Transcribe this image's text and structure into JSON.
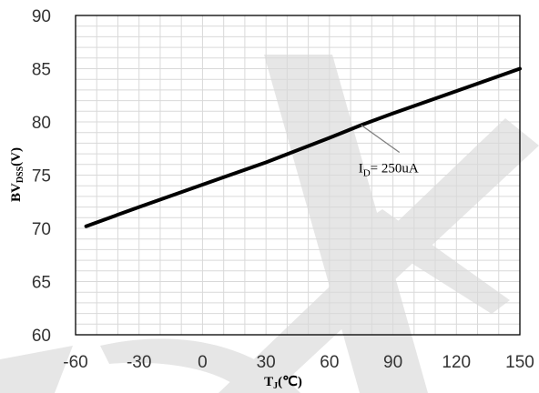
{
  "chart_data": {
    "type": "line",
    "xlim": [
      -60,
      150
    ],
    "ylim": [
      60,
      90
    ],
    "x_ticks": [
      -60,
      -30,
      0,
      30,
      60,
      90,
      120,
      150
    ],
    "y_ticks": [
      60,
      65,
      70,
      75,
      80,
      85,
      90
    ],
    "x_minor_step": 10,
    "y_minor_step": 1,
    "grid": true,
    "xlabel": {
      "main": "T",
      "sub": "J",
      "rest": "(℃)"
    },
    "ylabel": {
      "main": "BV",
      "sub": "DSS",
      "rest": "(V)"
    },
    "series": [
      {
        "color": "#000000",
        "x": [
          -55,
          -30,
          0,
          30,
          60,
          75,
          90,
          120,
          150
        ],
        "y": [
          70.2,
          72.0,
          74.1,
          76.2,
          78.5,
          79.7,
          80.8,
          82.9,
          85.0
        ]
      }
    ],
    "annotation": {
      "main": "I",
      "sub": "D",
      "rest": "= 250uA",
      "point": [
        75,
        79.7
      ]
    }
  },
  "colors": {
    "grid": "#d9d9d9",
    "frame": "#000000",
    "watermark": "#e6e6e6"
  }
}
